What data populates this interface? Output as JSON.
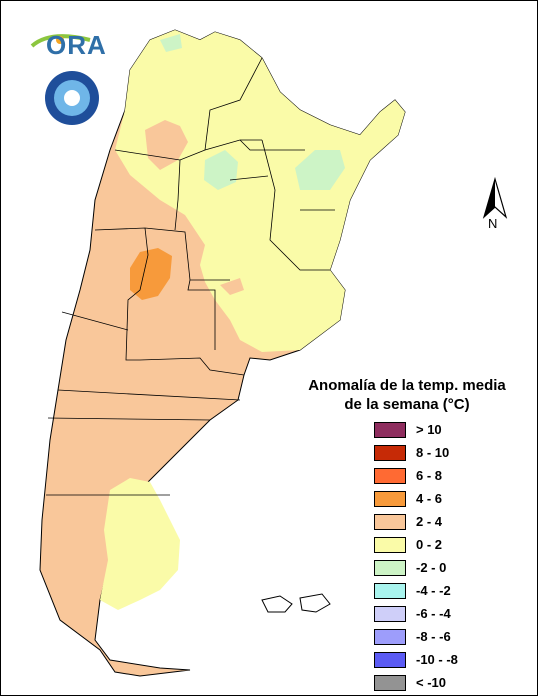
{
  "legend": {
    "title_line1": "Anomalía de la temp. media",
    "title_line2": "de la semana (°C)",
    "items": [
      {
        "label": "> 10",
        "color": "#8e2d5e"
      },
      {
        "label": "8 - 10",
        "color": "#c62a06"
      },
      {
        "label": "6 - 8",
        "color": "#ff6a33"
      },
      {
        "label": "4 - 6",
        "color": "#f79a3b"
      },
      {
        "label": "2 - 4",
        "color": "#f9c79a"
      },
      {
        "label": "0 - 2",
        "color": "#fafba8"
      },
      {
        "label": "-2 - 0",
        "color": "#cdf4c6"
      },
      {
        "label": "-4 - -2",
        "color": "#a9f4ee"
      },
      {
        "label": "-6 - -4",
        "color": "#cfcff9"
      },
      {
        "label": "-8 - -6",
        "color": "#9d9dfb"
      },
      {
        "label": "-10 - -8",
        "color": "#5b5bf4"
      },
      {
        "label": "< -10",
        "color": "#939393"
      }
    ]
  },
  "north_label": "N",
  "logo": {
    "name": "ORA"
  }
}
